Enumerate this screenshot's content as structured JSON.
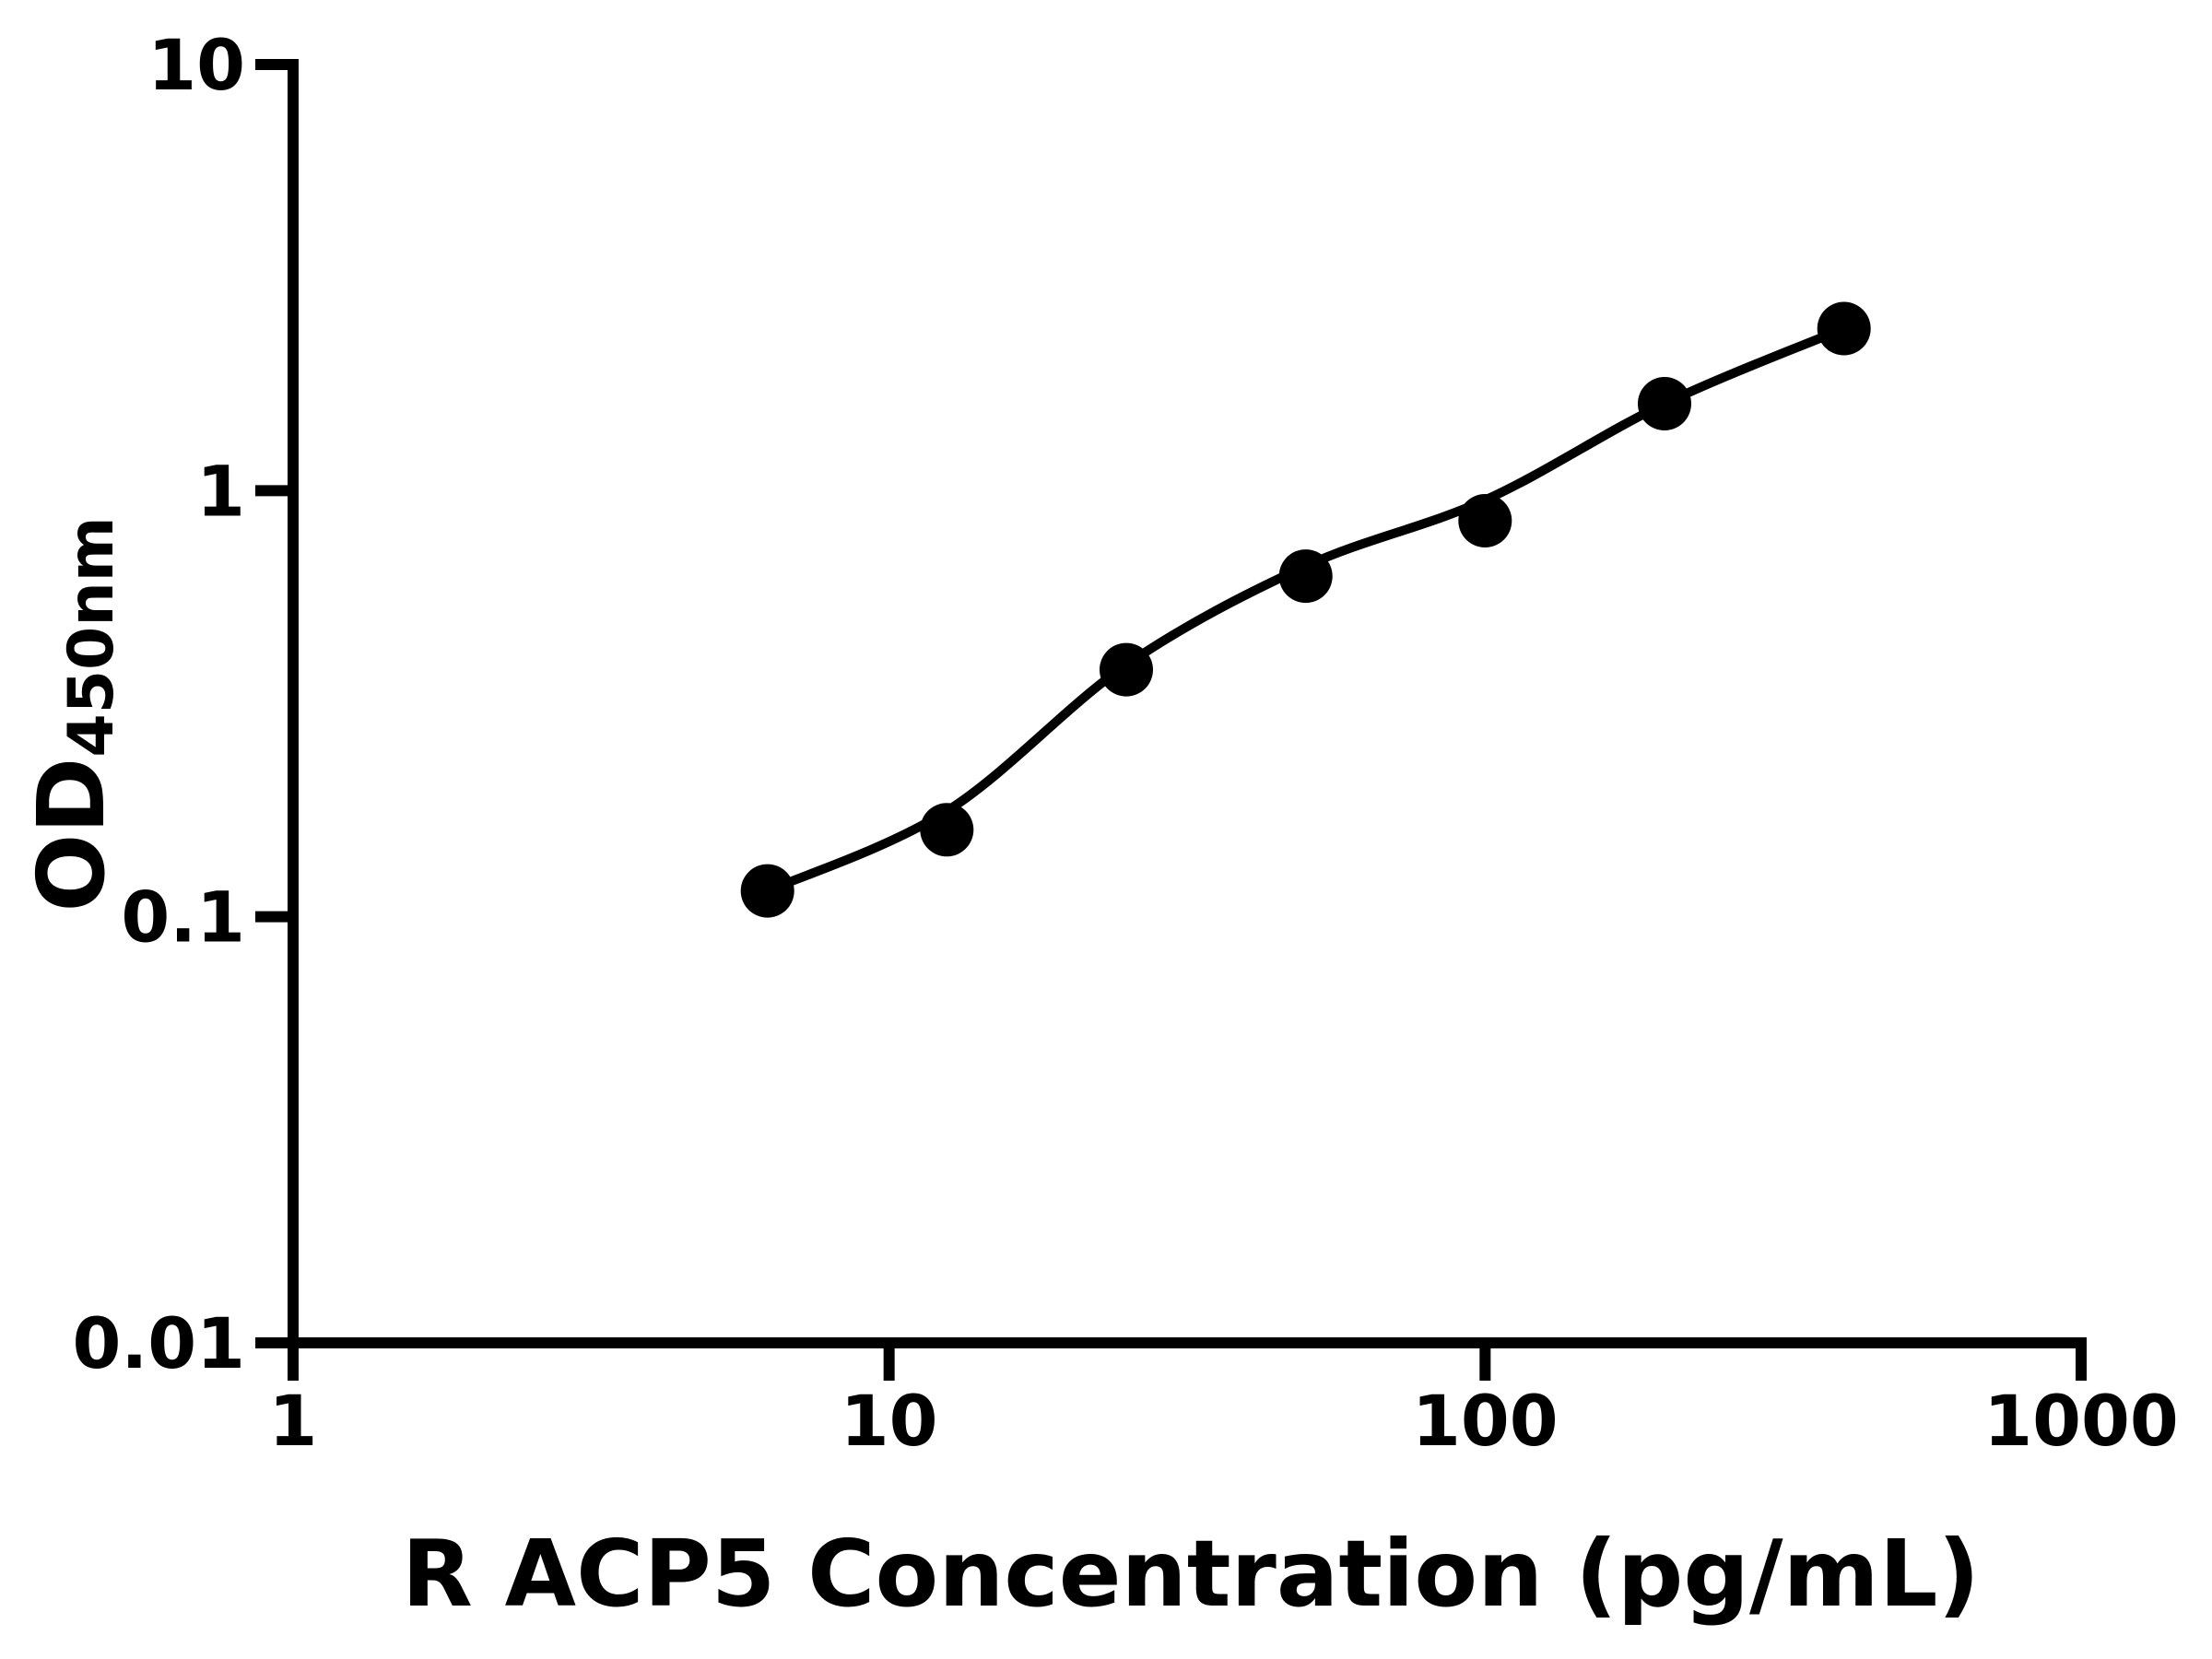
{
  "colors": {
    "foreground": "#000000",
    "background": "#ffffff"
  },
  "chart_data": {
    "type": "scatter",
    "title": "",
    "xlabel": "R ACP5 Concentration (pg/mL)",
    "ylabel_main": "OD",
    "ylabel_sub": "450nm",
    "x_scale": "log",
    "y_scale": "log",
    "xlim": [
      1,
      1000
    ],
    "ylim": [
      0.01,
      10
    ],
    "x_ticks": [
      1,
      10,
      100,
      1000
    ],
    "y_ticks": [
      10,
      1,
      0.1,
      0.01
    ],
    "grid": false,
    "legend": "none",
    "marker": {
      "shape": "circle",
      "radius": 29,
      "color": "#000000"
    },
    "line": {
      "width": 10,
      "color": "#000000"
    },
    "points": [
      {
        "x": 6.25,
        "y": 0.115
      },
      {
        "x": 12.5,
        "y": 0.16
      },
      {
        "x": 25,
        "y": 0.38
      },
      {
        "x": 50,
        "y": 0.63
      },
      {
        "x": 100,
        "y": 0.85
      },
      {
        "x": 200,
        "y": 1.6
      },
      {
        "x": 400,
        "y": 2.4
      }
    ],
    "fit_curve": [
      {
        "x": 6.25,
        "y": 0.115
      },
      {
        "x": 12.5,
        "y": 0.177
      },
      {
        "x": 25,
        "y": 0.39
      },
      {
        "x": 50,
        "y": 0.665
      },
      {
        "x": 100,
        "y": 0.95
      },
      {
        "x": 200,
        "y": 1.6
      },
      {
        "x": 400,
        "y": 2.4
      }
    ]
  }
}
